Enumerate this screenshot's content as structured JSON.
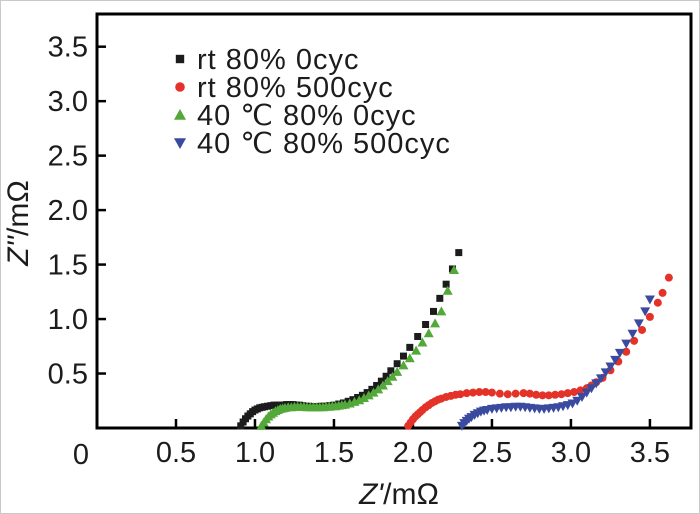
{
  "figure": {
    "background": "#ffffff",
    "frame_color": "#000000",
    "text_color": "#1c1c1c"
  },
  "chart_data": {
    "type": "scatter",
    "title": "",
    "xlabel": {
      "symbol": "Z'",
      "unit": "/mΩ"
    },
    "ylabel": {
      "symbol": "Z''",
      "unit": "/mΩ"
    },
    "xlim": [
      0,
      3.76
    ],
    "ylim": [
      0,
      3.8
    ],
    "grid": false,
    "legend_position": "upper-left",
    "xticks": {
      "values": [
        0,
        0.5,
        1.0,
        1.5,
        2.0,
        2.5,
        3.0,
        3.5
      ],
      "labels": [
        "0",
        "0.5",
        "1.0",
        "1.5",
        "2.0",
        "2.5",
        "3.0",
        "3.5"
      ]
    },
    "yticks": {
      "values": [
        0.5,
        1.0,
        1.5,
        2.0,
        2.5,
        3.0,
        3.5
      ],
      "labels": [
        "0.5",
        "1.0",
        "1.5",
        "2.0",
        "2.5",
        "3.0",
        "3.5"
      ]
    },
    "origin_label": "0",
    "series": [
      {
        "name": "rt 80% 0cyc",
        "marker": "square",
        "color": "#1c1c1c",
        "points": [
          [
            0.91,
            0.02
          ],
          [
            0.925,
            0.055
          ],
          [
            0.94,
            0.085
          ],
          [
            0.955,
            0.11
          ],
          [
            0.97,
            0.13
          ],
          [
            0.985,
            0.15
          ],
          [
            1.0,
            0.165
          ],
          [
            1.015,
            0.175
          ],
          [
            1.03,
            0.185
          ],
          [
            1.045,
            0.19
          ],
          [
            1.06,
            0.195
          ],
          [
            1.08,
            0.2
          ],
          [
            1.1,
            0.205
          ],
          [
            1.12,
            0.21
          ],
          [
            1.14,
            0.21
          ],
          [
            1.16,
            0.21
          ],
          [
            1.18,
            0.21
          ],
          [
            1.2,
            0.215
          ],
          [
            1.22,
            0.215
          ],
          [
            1.24,
            0.215
          ],
          [
            1.26,
            0.21
          ],
          [
            1.28,
            0.21
          ],
          [
            1.3,
            0.205
          ],
          [
            1.32,
            0.2
          ],
          [
            1.34,
            0.2
          ],
          [
            1.36,
            0.195
          ],
          [
            1.38,
            0.195
          ],
          [
            1.4,
            0.195
          ],
          [
            1.42,
            0.2
          ],
          [
            1.44,
            0.2
          ],
          [
            1.47,
            0.205
          ],
          [
            1.5,
            0.21
          ],
          [
            1.53,
            0.22
          ],
          [
            1.56,
            0.23
          ],
          [
            1.59,
            0.245
          ],
          [
            1.62,
            0.26
          ],
          [
            1.65,
            0.28
          ],
          [
            1.68,
            0.3
          ],
          [
            1.71,
            0.325
          ],
          [
            1.74,
            0.355
          ],
          [
            1.77,
            0.39
          ],
          [
            1.8,
            0.43
          ],
          [
            1.83,
            0.475
          ],
          [
            1.86,
            0.525
          ],
          [
            1.9,
            0.59
          ],
          [
            1.94,
            0.66
          ],
          [
            1.98,
            0.74
          ],
          [
            2.03,
            0.84
          ],
          [
            2.08,
            0.95
          ],
          [
            2.13,
            1.07
          ],
          [
            2.17,
            1.19
          ],
          [
            2.21,
            1.32
          ],
          [
            2.25,
            1.46
          ],
          [
            2.29,
            1.61
          ]
        ]
      },
      {
        "name": "rt 80% 500cyc",
        "marker": "circle",
        "color": "#e53228",
        "points": [
          [
            1.97,
            0.02
          ],
          [
            1.985,
            0.05
          ],
          [
            2.0,
            0.08
          ],
          [
            2.015,
            0.105
          ],
          [
            2.03,
            0.125
          ],
          [
            2.045,
            0.145
          ],
          [
            2.06,
            0.165
          ],
          [
            2.08,
            0.19
          ],
          [
            2.1,
            0.21
          ],
          [
            2.12,
            0.23
          ],
          [
            2.14,
            0.245
          ],
          [
            2.16,
            0.26
          ],
          [
            2.18,
            0.27
          ],
          [
            2.21,
            0.285
          ],
          [
            2.24,
            0.295
          ],
          [
            2.27,
            0.305
          ],
          [
            2.3,
            0.31
          ],
          [
            2.34,
            0.32
          ],
          [
            2.38,
            0.325
          ],
          [
            2.42,
            0.33
          ],
          [
            2.46,
            0.33
          ],
          [
            2.5,
            0.325
          ],
          [
            2.55,
            0.315
          ],
          [
            2.6,
            0.31
          ],
          [
            2.65,
            0.315
          ],
          [
            2.7,
            0.32
          ],
          [
            2.74,
            0.315
          ],
          [
            2.78,
            0.305
          ],
          [
            2.82,
            0.3
          ],
          [
            2.86,
            0.3
          ],
          [
            2.9,
            0.305
          ],
          [
            2.94,
            0.31
          ],
          [
            2.98,
            0.32
          ],
          [
            3.02,
            0.33
          ],
          [
            3.06,
            0.345
          ],
          [
            3.1,
            0.365
          ],
          [
            3.13,
            0.39
          ],
          [
            3.16,
            0.42
          ],
          [
            3.2,
            0.46
          ],
          [
            3.25,
            0.53
          ],
          [
            3.3,
            0.61
          ],
          [
            3.35,
            0.7
          ],
          [
            3.4,
            0.8
          ],
          [
            3.45,
            0.9
          ],
          [
            3.5,
            1.02
          ],
          [
            3.55,
            1.15
          ],
          [
            3.58,
            1.24
          ],
          [
            3.62,
            1.38
          ]
        ]
      },
      {
        "name": "40 ℃ 80% 0cyc",
        "marker": "triangle-up",
        "color": "#52a838",
        "points": [
          [
            1.04,
            0.02
          ],
          [
            1.055,
            0.05
          ],
          [
            1.07,
            0.08
          ],
          [
            1.085,
            0.105
          ],
          [
            1.1,
            0.125
          ],
          [
            1.115,
            0.14
          ],
          [
            1.13,
            0.155
          ],
          [
            1.145,
            0.165
          ],
          [
            1.16,
            0.175
          ],
          [
            1.175,
            0.18
          ],
          [
            1.19,
            0.185
          ],
          [
            1.21,
            0.19
          ],
          [
            1.23,
            0.19
          ],
          [
            1.25,
            0.195
          ],
          [
            1.27,
            0.195
          ],
          [
            1.29,
            0.195
          ],
          [
            1.31,
            0.195
          ],
          [
            1.33,
            0.19
          ],
          [
            1.35,
            0.19
          ],
          [
            1.37,
            0.19
          ],
          [
            1.39,
            0.19
          ],
          [
            1.41,
            0.19
          ],
          [
            1.43,
            0.19
          ],
          [
            1.45,
            0.195
          ],
          [
            1.47,
            0.195
          ],
          [
            1.49,
            0.2
          ],
          [
            1.51,
            0.2
          ],
          [
            1.53,
            0.205
          ],
          [
            1.55,
            0.21
          ],
          [
            1.57,
            0.215
          ],
          [
            1.6,
            0.225
          ],
          [
            1.63,
            0.24
          ],
          [
            1.66,
            0.255
          ],
          [
            1.69,
            0.275
          ],
          [
            1.72,
            0.3
          ],
          [
            1.75,
            0.325
          ],
          [
            1.78,
            0.355
          ],
          [
            1.81,
            0.39
          ],
          [
            1.84,
            0.43
          ],
          [
            1.87,
            0.47
          ],
          [
            1.9,
            0.515
          ],
          [
            1.94,
            0.575
          ],
          [
            1.98,
            0.64
          ],
          [
            2.02,
            0.71
          ],
          [
            2.06,
            0.785
          ],
          [
            2.1,
            0.87
          ],
          [
            2.14,
            0.96
          ],
          [
            2.18,
            1.07
          ],
          [
            2.22,
            1.26
          ],
          [
            2.26,
            1.45
          ]
        ]
      },
      {
        "name": "40 ℃ 80% 500cyc",
        "marker": "triangle-down",
        "color": "#3a4a9f",
        "points": [
          [
            2.31,
            0.02
          ],
          [
            2.325,
            0.045
          ],
          [
            2.34,
            0.065
          ],
          [
            2.355,
            0.085
          ],
          [
            2.37,
            0.1
          ],
          [
            2.39,
            0.12
          ],
          [
            2.41,
            0.135
          ],
          [
            2.43,
            0.15
          ],
          [
            2.45,
            0.16
          ],
          [
            2.47,
            0.165
          ],
          [
            2.5,
            0.175
          ],
          [
            2.53,
            0.18
          ],
          [
            2.56,
            0.185
          ],
          [
            2.59,
            0.19
          ],
          [
            2.62,
            0.19
          ],
          [
            2.65,
            0.195
          ],
          [
            2.68,
            0.195
          ],
          [
            2.71,
            0.19
          ],
          [
            2.74,
            0.185
          ],
          [
            2.77,
            0.18
          ],
          [
            2.8,
            0.175
          ],
          [
            2.83,
            0.175
          ],
          [
            2.86,
            0.18
          ],
          [
            2.89,
            0.185
          ],
          [
            2.92,
            0.19
          ],
          [
            2.95,
            0.2
          ],
          [
            2.98,
            0.21
          ],
          [
            3.01,
            0.225
          ],
          [
            3.04,
            0.25
          ],
          [
            3.07,
            0.285
          ],
          [
            3.1,
            0.325
          ],
          [
            3.13,
            0.365
          ],
          [
            3.16,
            0.41
          ],
          [
            3.19,
            0.455
          ],
          [
            3.22,
            0.51
          ],
          [
            3.25,
            0.565
          ],
          [
            3.28,
            0.625
          ],
          [
            3.31,
            0.69
          ],
          [
            3.35,
            0.775
          ],
          [
            3.39,
            0.865
          ],
          [
            3.43,
            0.96
          ],
          [
            3.47,
            1.07
          ],
          [
            3.5,
            1.18
          ]
        ]
      }
    ]
  }
}
